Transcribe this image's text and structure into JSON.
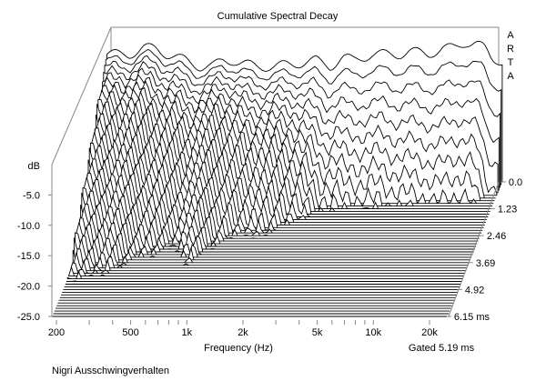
{
  "chart_data": {
    "type": "waterfall",
    "title": "Cumulative Spectral Decay",
    "brand": [
      "A",
      "R",
      "T",
      "A"
    ],
    "xlabel": "Frequency (Hz)",
    "ylabel": "dB",
    "zlabel_unit": "ms",
    "gated_label": "Gated 5.19 ms",
    "footer": "Nigri Ausschwingverhalten",
    "x_scale": "log",
    "xlim": [
      190,
      25000
    ],
    "ylim": [
      -25,
      0
    ],
    "zlim": [
      0,
      6.15
    ],
    "slice_count": 51,
    "x_ticks": [
      {
        "value": 200,
        "label": "200"
      },
      {
        "value": 300,
        "label": ""
      },
      {
        "value": 400,
        "label": ""
      },
      {
        "value": 500,
        "label": "500"
      },
      {
        "value": 600,
        "label": ""
      },
      {
        "value": 700,
        "label": ""
      },
      {
        "value": 800,
        "label": ""
      },
      {
        "value": 900,
        "label": ""
      },
      {
        "value": 1000,
        "label": "1k"
      },
      {
        "value": 2000,
        "label": "2k"
      },
      {
        "value": 3000,
        "label": ""
      },
      {
        "value": 4000,
        "label": ""
      },
      {
        "value": 5000,
        "label": "5k"
      },
      {
        "value": 6000,
        "label": ""
      },
      {
        "value": 7000,
        "label": ""
      },
      {
        "value": 8000,
        "label": ""
      },
      {
        "value": 9000,
        "label": ""
      },
      {
        "value": 10000,
        "label": "10k"
      },
      {
        "value": 20000,
        "label": "20k"
      }
    ],
    "y_ticks": [
      {
        "value": -5,
        "label": "-5.0"
      },
      {
        "value": -10,
        "label": "-10.0"
      },
      {
        "value": -15,
        "label": "-15.0"
      },
      {
        "value": -20,
        "label": "-20.0"
      },
      {
        "value": -25,
        "label": "-25.0"
      }
    ],
    "z_ticks": [
      {
        "value": 0,
        "label": "0.0"
      },
      {
        "value": 1.23,
        "label": "1.23"
      },
      {
        "value": 2.46,
        "label": "2.46"
      },
      {
        "value": 3.69,
        "label": "3.69"
      },
      {
        "value": 4.92,
        "label": "4.92"
      },
      {
        "value": 6.15,
        "label": "6.15 ms"
      }
    ],
    "freqs": [
      200,
      250,
      300,
      350,
      400,
      500,
      600,
      700,
      800,
      900,
      1000,
      1200,
      1500,
      2000,
      2500,
      3000,
      3500,
      4000,
      5000,
      6000,
      7000,
      8000,
      10000,
      12000,
      14000,
      16000,
      18000,
      20000,
      22000
    ],
    "initial_db": [
      -4,
      -4,
      -3,
      -3,
      -4,
      -5,
      -6,
      -6,
      -5,
      -5,
      -5.5,
      -6,
      -6,
      -5.5,
      -5,
      -6,
      -4.5,
      -5,
      -4,
      -4,
      -4,
      -3.5,
      -4,
      -3,
      -3,
      -2,
      -2,
      -3,
      -5
    ],
    "decay_db_per_ms": [
      5,
      5,
      5.5,
      6,
      6,
      6.5,
      6.5,
      6,
      5.5,
      6,
      7,
      8,
      8,
      9,
      12,
      14,
      16,
      17,
      18,
      18,
      19,
      20,
      20,
      22,
      22,
      22,
      22,
      24,
      30
    ]
  }
}
